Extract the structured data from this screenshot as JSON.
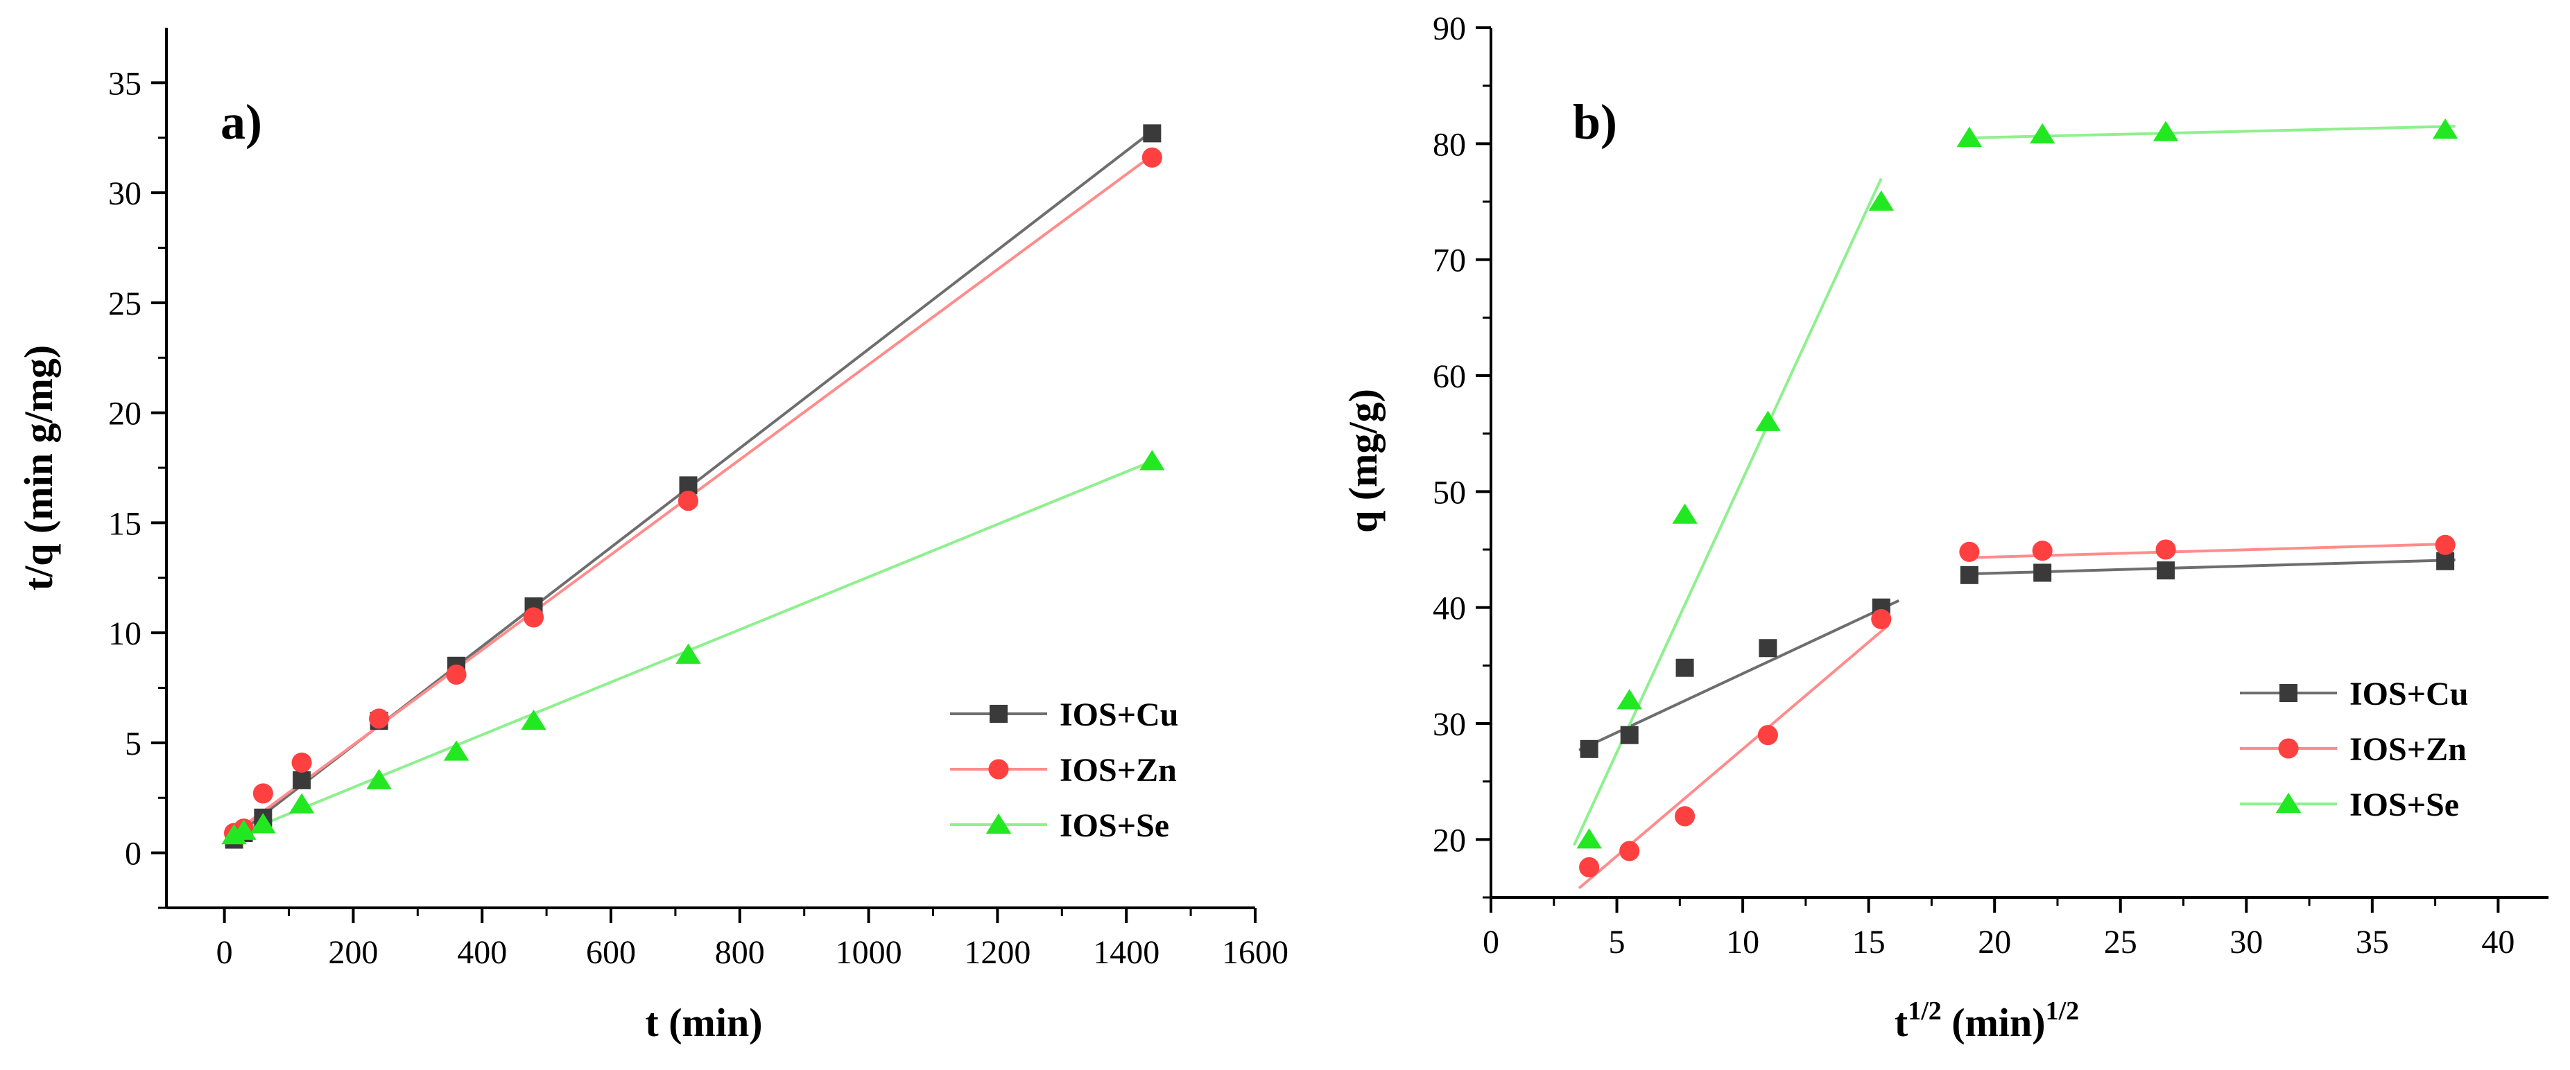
{
  "colors": {
    "cu": "#3a3a3a",
    "cu_line": "#6e6e6e",
    "zn": "#ff4040",
    "zn_line": "#ff8c8c",
    "se": "#22e822",
    "se_line": "#8ef08e",
    "axis": "#000000"
  },
  "chart_data": [
    {
      "type": "scatter",
      "panel_label": "a)",
      "xlabel": "t (min)",
      "ylabel": "t/q (min g/mg)",
      "xlim": [
        -90,
        1600
      ],
      "ylim": [
        -2.5,
        37.5
      ],
      "xticks": [
        0,
        200,
        400,
        600,
        800,
        1000,
        1200,
        1400,
        1600
      ],
      "yticks": [
        0,
        5,
        10,
        15,
        20,
        25,
        30,
        35
      ],
      "legend_position": "lower-right",
      "series": [
        {
          "name": "IOS+Cu",
          "marker": "square",
          "color_key": "cu",
          "x": [
            15,
            30,
            60,
            120,
            240,
            360,
            480,
            720,
            1440
          ],
          "y": [
            0.6,
            0.9,
            1.6,
            3.3,
            6.0,
            8.5,
            11.2,
            16.7,
            32.7
          ],
          "fit": {
            "x": [
              10,
              1440
            ],
            "y": [
              0.6,
              32.8
            ]
          }
        },
        {
          "name": "IOS+Zn",
          "marker": "circle",
          "color_key": "zn",
          "x": [
            15,
            30,
            60,
            120,
            240,
            360,
            480,
            720,
            1440
          ],
          "y": [
            0.9,
            1.1,
            2.7,
            4.1,
            6.1,
            8.1,
            10.7,
            16.0,
            31.6
          ],
          "fit": {
            "x": [
              10,
              1440
            ],
            "y": [
              0.8,
              31.7
            ]
          }
        },
        {
          "name": "IOS+Se",
          "marker": "triangle",
          "color_key": "se",
          "x": [
            15,
            30,
            60,
            120,
            240,
            360,
            480,
            720,
            1440
          ],
          "y": [
            0.8,
            1.0,
            1.3,
            2.2,
            3.3,
            4.6,
            6.0,
            9.0,
            17.8
          ],
          "fit": {
            "x": [
              10,
              1440
            ],
            "y": [
              0.7,
              17.8
            ]
          }
        }
      ]
    },
    {
      "type": "scatter",
      "panel_label": "b)",
      "xlabel_base": "t",
      "xlabel_sup": "1/2",
      "xlabel_mid": " (min)",
      "xlabel_sup2": "1/2",
      "ylabel": "q (mg/g)",
      "xlim": [
        0,
        42
      ],
      "ylim": [
        15,
        90
      ],
      "xticks": [
        0,
        5,
        10,
        15,
        20,
        25,
        30,
        35,
        40
      ],
      "yticks": [
        20,
        30,
        40,
        50,
        60,
        70,
        80,
        90
      ],
      "legend_position": "lower-right",
      "series": [
        {
          "name": "IOS+Cu",
          "marker": "square",
          "color_key": "cu",
          "x": [
            3.9,
            5.5,
            7.7,
            11.0,
            15.5,
            19.0,
            21.9,
            26.8,
            37.9
          ],
          "y": [
            27.8,
            29.0,
            34.8,
            36.5,
            40.0,
            42.8,
            43.0,
            43.2,
            44.0
          ],
          "fits": [
            {
              "x": [
                3.5,
                16.2
              ],
              "y": [
                27.7,
                40.6
              ]
            },
            {
              "x": [
                19.0,
                38.3
              ],
              "y": [
                42.9,
                44.1
              ]
            }
          ]
        },
        {
          "name": "IOS+Zn",
          "marker": "circle",
          "color_key": "zn",
          "x": [
            3.9,
            5.5,
            7.7,
            11.0,
            15.5,
            19.0,
            21.9,
            26.8,
            37.9
          ],
          "y": [
            17.6,
            19.0,
            22.0,
            29.0,
            39.0,
            44.8,
            44.9,
            45.0,
            45.4
          ],
          "fits": [
            {
              "x": [
                3.5,
                15.8
              ],
              "y": [
                15.8,
                38.5
              ]
            },
            {
              "x": [
                19.0,
                38.3
              ],
              "y": [
                44.3,
                45.5
              ]
            }
          ]
        },
        {
          "name": "IOS+Se",
          "marker": "triangle",
          "color_key": "se",
          "x": [
            3.9,
            5.5,
            7.7,
            11.0,
            15.5,
            19.0,
            21.9,
            26.8,
            37.9
          ],
          "y": [
            20.0,
            32.0,
            48.0,
            56.0,
            75.0,
            80.5,
            80.8,
            81.0,
            81.2
          ],
          "fits": [
            {
              "x": [
                3.3,
                15.5
              ],
              "y": [
                19.5,
                77.0
              ]
            },
            {
              "x": [
                19.0,
                38.3
              ],
              "y": [
                80.5,
                81.5
              ]
            }
          ]
        }
      ]
    }
  ]
}
